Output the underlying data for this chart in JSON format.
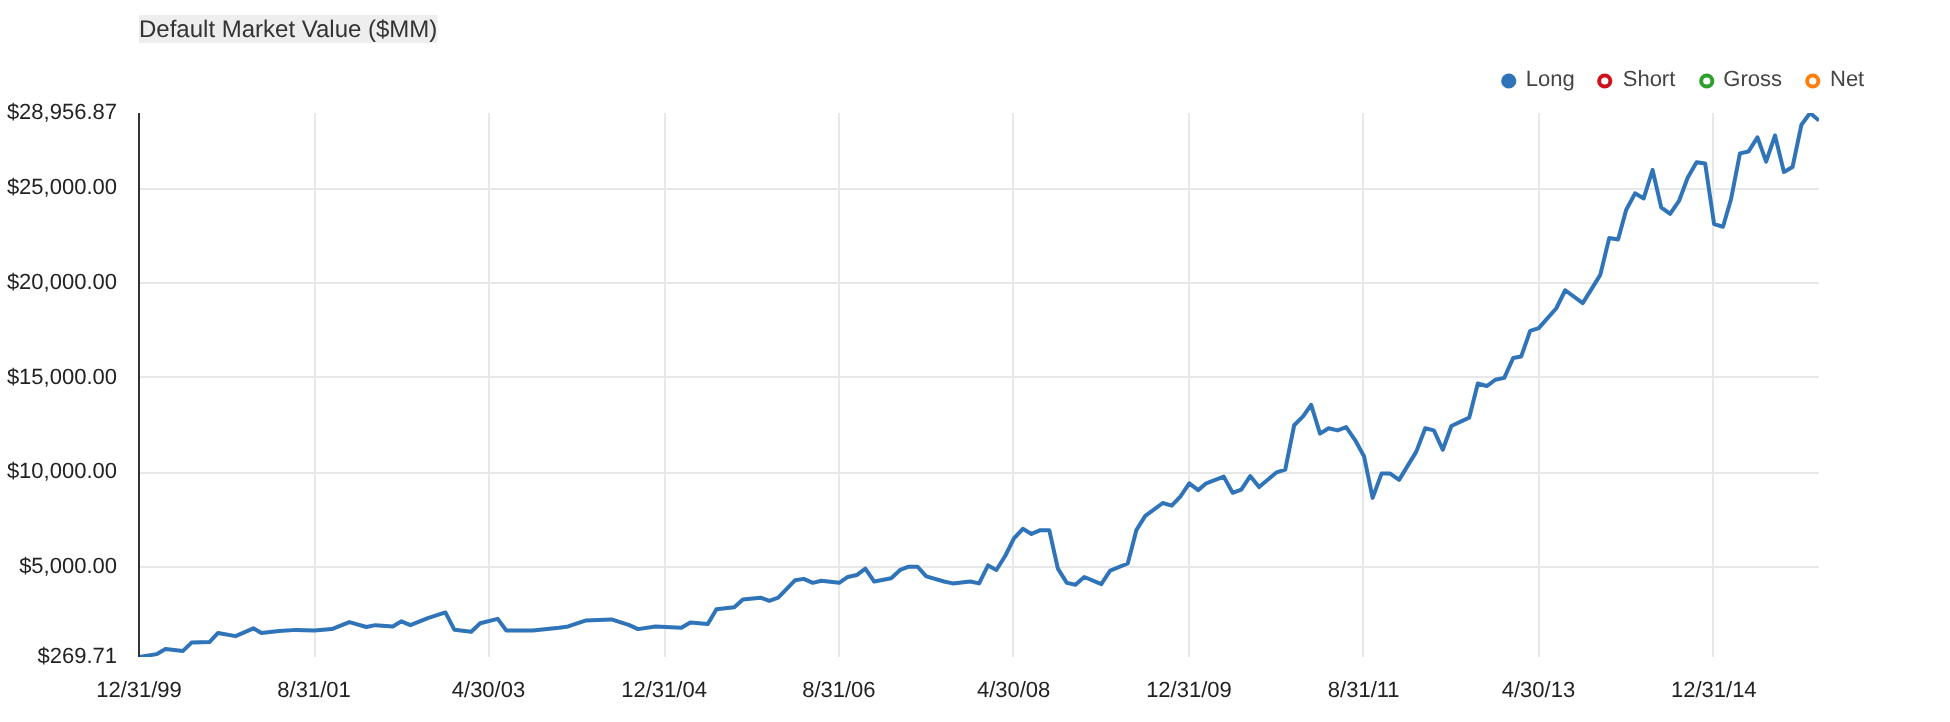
{
  "chart_data": {
    "type": "line",
    "title": "Default Market Value ($MM)",
    "x": [
      "2000-01",
      "2000-03",
      "2000-04",
      "2000-06",
      "2000-07",
      "2000-09",
      "2000-10",
      "2000-12",
      "2001-02",
      "2001-03",
      "2001-05",
      "2001-07",
      "2001-09",
      "2001-11",
      "2002-01",
      "2002-03",
      "2002-04",
      "2002-06",
      "2002-07",
      "2002-08",
      "2002-10",
      "2002-12",
      "2003-01",
      "2003-03",
      "2003-04",
      "2003-06",
      "2003-07",
      "2003-10",
      "2004-01",
      "2004-02",
      "2004-04",
      "2004-07",
      "2004-09",
      "2004-10",
      "2004-12",
      "2005-03",
      "2005-04",
      "2005-06",
      "2005-07",
      "2005-09",
      "2005-10",
      "2005-12",
      "2006-01",
      "2006-02",
      "2006-04",
      "2006-05",
      "2006-06",
      "2006-07",
      "2006-09",
      "2006-10",
      "2006-11",
      "2006-12",
      "2007-01",
      "2007-03",
      "2007-04",
      "2007-05",
      "2007-06",
      "2007-07",
      "2007-09",
      "2007-10",
      "2007-12",
      "2008-01",
      "2008-02",
      "2008-03",
      "2008-04",
      "2008-05",
      "2008-06",
      "2008-07",
      "2008-08",
      "2008-09",
      "2008-10",
      "2008-11",
      "2008-12",
      "2009-01",
      "2009-03",
      "2009-04",
      "2009-06",
      "2009-07",
      "2009-08",
      "2009-10",
      "2009-11",
      "2009-12",
      "2010-01",
      "2010-02",
      "2010-03",
      "2010-05",
      "2010-06",
      "2010-07",
      "2010-08",
      "2010-09",
      "2010-11",
      "2010-12",
      "2011-01",
      "2011-02",
      "2011-03",
      "2011-04",
      "2011-05",
      "2011-06",
      "2011-07",
      "2011-08",
      "2011-09",
      "2011-10",
      "2011-11",
      "2011-12",
      "2012-01",
      "2012-03",
      "2012-04",
      "2012-05",
      "2012-06",
      "2012-07",
      "2012-09",
      "2012-10",
      "2012-11",
      "2012-12",
      "2013-01",
      "2013-02",
      "2013-03",
      "2013-04",
      "2013-05",
      "2013-07",
      "2013-08",
      "2013-10",
      "2013-11",
      "2013-12",
      "2014-01",
      "2014-02",
      "2014-03",
      "2014-04",
      "2014-05",
      "2014-06",
      "2014-07",
      "2014-08",
      "2014-09",
      "2014-10",
      "2014-11",
      "2014-12",
      "2015-01",
      "2015-02",
      "2015-03",
      "2015-04",
      "2015-05",
      "2015-06",
      "2015-07",
      "2015-08",
      "2015-09",
      "2015-10",
      "2015-11",
      "2015-12",
      "2016-01"
    ],
    "series": [
      {
        "name": "Long",
        "color": "#2f73b8",
        "values": [
          269.71,
          420,
          690,
          590,
          1030,
          1060,
          1540,
          1370,
          1780,
          1540,
          1640,
          1700,
          1670,
          1740,
          2110,
          1850,
          1950,
          1880,
          2150,
          1950,
          2320,
          2620,
          1710,
          1600,
          2050,
          2280,
          1670,
          1670,
          1810,
          1880,
          2190,
          2250,
          1950,
          1740,
          1880,
          1810,
          2090,
          2010,
          2790,
          2890,
          3300,
          3400,
          3230,
          3400,
          4320,
          4390,
          4180,
          4290,
          4180,
          4490,
          4590,
          4930,
          4250,
          4420,
          4860,
          5030,
          5030,
          4520,
          4250,
          4150,
          4250,
          4150,
          5100,
          4860,
          5610,
          6520,
          7030,
          6760,
          6960,
          6960,
          4930,
          4180,
          4080,
          4490,
          4110,
          4830,
          5200,
          6960,
          7710,
          8390,
          8250,
          8730,
          9430,
          9070,
          9430,
          9780,
          8930,
          9100,
          9810,
          9230,
          10010,
          10150,
          12490,
          12960,
          13570,
          12050,
          12330,
          12220,
          12390,
          11710,
          10860,
          8660,
          9940,
          9940,
          9610,
          11100,
          12330,
          12220,
          11200,
          12450,
          12890,
          14690,
          14560,
          14890,
          14990,
          16040,
          16120,
          17470,
          17610,
          18660,
          19610,
          18930,
          19680,
          20420,
          22360,
          22290,
          23840,
          24720,
          24450,
          25950,
          23980,
          23640,
          24320,
          25540,
          26360,
          26290,
          23100,
          22960,
          24420,
          26830,
          26930,
          27670,
          26390,
          27770,
          25850,
          26110,
          28340,
          28956.87,
          28560
        ]
      },
      {
        "name": "Short",
        "color": "#d0101b",
        "values": [
          null,
          null,
          null,
          null,
          null,
          null,
          null,
          null,
          null,
          null,
          null,
          null,
          null,
          null,
          null,
          null,
          null,
          null,
          null,
          null,
          null,
          null,
          null,
          null,
          null,
          null,
          null,
          null,
          null,
          null,
          null,
          null,
          null,
          null,
          null,
          null,
          null,
          null,
          null,
          null,
          null,
          null,
          null,
          null,
          null,
          null,
          null,
          null,
          null,
          null,
          null,
          null,
          null,
          null,
          null,
          null,
          null,
          null,
          null,
          null,
          null,
          null,
          null,
          null,
          null,
          null,
          null,
          null,
          null,
          null,
          null,
          null,
          null,
          null,
          null,
          null,
          null,
          null,
          null,
          null,
          null,
          null,
          null,
          null,
          null,
          null,
          null,
          null,
          null,
          null,
          null,
          null,
          null,
          null,
          null,
          null,
          null,
          null,
          null,
          null,
          null,
          null,
          null,
          null,
          null,
          null,
          null,
          null,
          null,
          null,
          null,
          null,
          null,
          null,
          null,
          null,
          null,
          null,
          null,
          null,
          null,
          null,
          null,
          null,
          null,
          null,
          null,
          null,
          null,
          null,
          null,
          null,
          null,
          null,
          null,
          null,
          null,
          null,
          null,
          null,
          null,
          null,
          null,
          null,
          null,
          null,
          null,
          null,
          null
        ]
      },
      {
        "name": "Gross",
        "color": "#2ca02c",
        "values": [
          null,
          null,
          null,
          null,
          null,
          null,
          null,
          null,
          null,
          null,
          null,
          null,
          null,
          null,
          null,
          null,
          null,
          null,
          null,
          null,
          null,
          null,
          null,
          null,
          null,
          null,
          null,
          null,
          null,
          null,
          null,
          null,
          null,
          null,
          null,
          null,
          null,
          null,
          null,
          null,
          null,
          null,
          null,
          null,
          null,
          null,
          null,
          null,
          null,
          null,
          null,
          null,
          null,
          null,
          null,
          null,
          null,
          null,
          null,
          null,
          null,
          null,
          null,
          null,
          null,
          null,
          null,
          null,
          null,
          null,
          null,
          null,
          null,
          null,
          null,
          null,
          null,
          null,
          null,
          null,
          null,
          null,
          null,
          null,
          null,
          null,
          null,
          null,
          null,
          null,
          null,
          null,
          null,
          null,
          null,
          null,
          null,
          null,
          null,
          null,
          null,
          null,
          null,
          null,
          null,
          null,
          null,
          null,
          null,
          null,
          null,
          null,
          null,
          null,
          null,
          null,
          null,
          null,
          null,
          null,
          null,
          null,
          null,
          null,
          null,
          null,
          null,
          null,
          null,
          null,
          null,
          null,
          null,
          null,
          null,
          null,
          null,
          null,
          null,
          null,
          null,
          null,
          null,
          null,
          null,
          null,
          null,
          null,
          null
        ]
      },
      {
        "name": "Net",
        "color": "#ff7f0e",
        "values": [
          null,
          null,
          null,
          null,
          null,
          null,
          null,
          null,
          null,
          null,
          null,
          null,
          null,
          null,
          null,
          null,
          null,
          null,
          null,
          null,
          null,
          null,
          null,
          null,
          null,
          null,
          null,
          null,
          null,
          null,
          null,
          null,
          null,
          null,
          null,
          null,
          null,
          null,
          null,
          null,
          null,
          null,
          null,
          null,
          null,
          null,
          null,
          null,
          null,
          null,
          null,
          null,
          null,
          null,
          null,
          null,
          null,
          null,
          null,
          null,
          null,
          null,
          null,
          null,
          null,
          null,
          null,
          null,
          null,
          null,
          null,
          null,
          null,
          null,
          null,
          null,
          null,
          null,
          null,
          null,
          null,
          null,
          null,
          null,
          null,
          null,
          null,
          null,
          null,
          null,
          null,
          null,
          null,
          null,
          null,
          null,
          null,
          null,
          null,
          null,
          null,
          null,
          null,
          null,
          null,
          null,
          null,
          null,
          null,
          null,
          null,
          null,
          null,
          null,
          null,
          null,
          null,
          null,
          null,
          null,
          null,
          null,
          null,
          null,
          null,
          null,
          null,
          null,
          null,
          null,
          null,
          null,
          null,
          null,
          null,
          null,
          null,
          null,
          null,
          null,
          null,
          null,
          null,
          null,
          null,
          null,
          null,
          null,
          null
        ]
      }
    ],
    "xlim": [
      "1999-12-31",
      "2016-01"
    ],
    "xticks": [
      {
        "value": "1999-12-31",
        "label": "12/31/99"
      },
      {
        "value": "2001-08-31",
        "label": "8/31/01"
      },
      {
        "value": "2003-04-30",
        "label": "4/30/03"
      },
      {
        "value": "2004-12-31",
        "label": "12/31/04"
      },
      {
        "value": "2006-08-31",
        "label": "8/31/06"
      },
      {
        "value": "2008-04-30",
        "label": "4/30/08"
      },
      {
        "value": "2009-12-31",
        "label": "12/31/09"
      },
      {
        "value": "2011-08-31",
        "label": "8/31/11"
      },
      {
        "value": "2013-04-30",
        "label": "4/30/13"
      },
      {
        "value": "2014-12-31",
        "label": "12/31/14"
      }
    ],
    "ylim": [
      269.71,
      28956.87
    ],
    "yticks": [
      {
        "value": 269.71,
        "label": "$269.71"
      },
      {
        "value": 5000,
        "label": "$5,000.00"
      },
      {
        "value": 10000,
        "label": "$10,000.00"
      },
      {
        "value": 15000,
        "label": "$15,000.00"
      },
      {
        "value": 20000,
        "label": "$20,000.00"
      },
      {
        "value": 25000,
        "label": "$25,000.00"
      },
      {
        "value": 28956.87,
        "label": "$28,956.87"
      }
    ],
    "grid": true,
    "legend": "top right",
    "marker": "none",
    "line_style": "solid"
  }
}
